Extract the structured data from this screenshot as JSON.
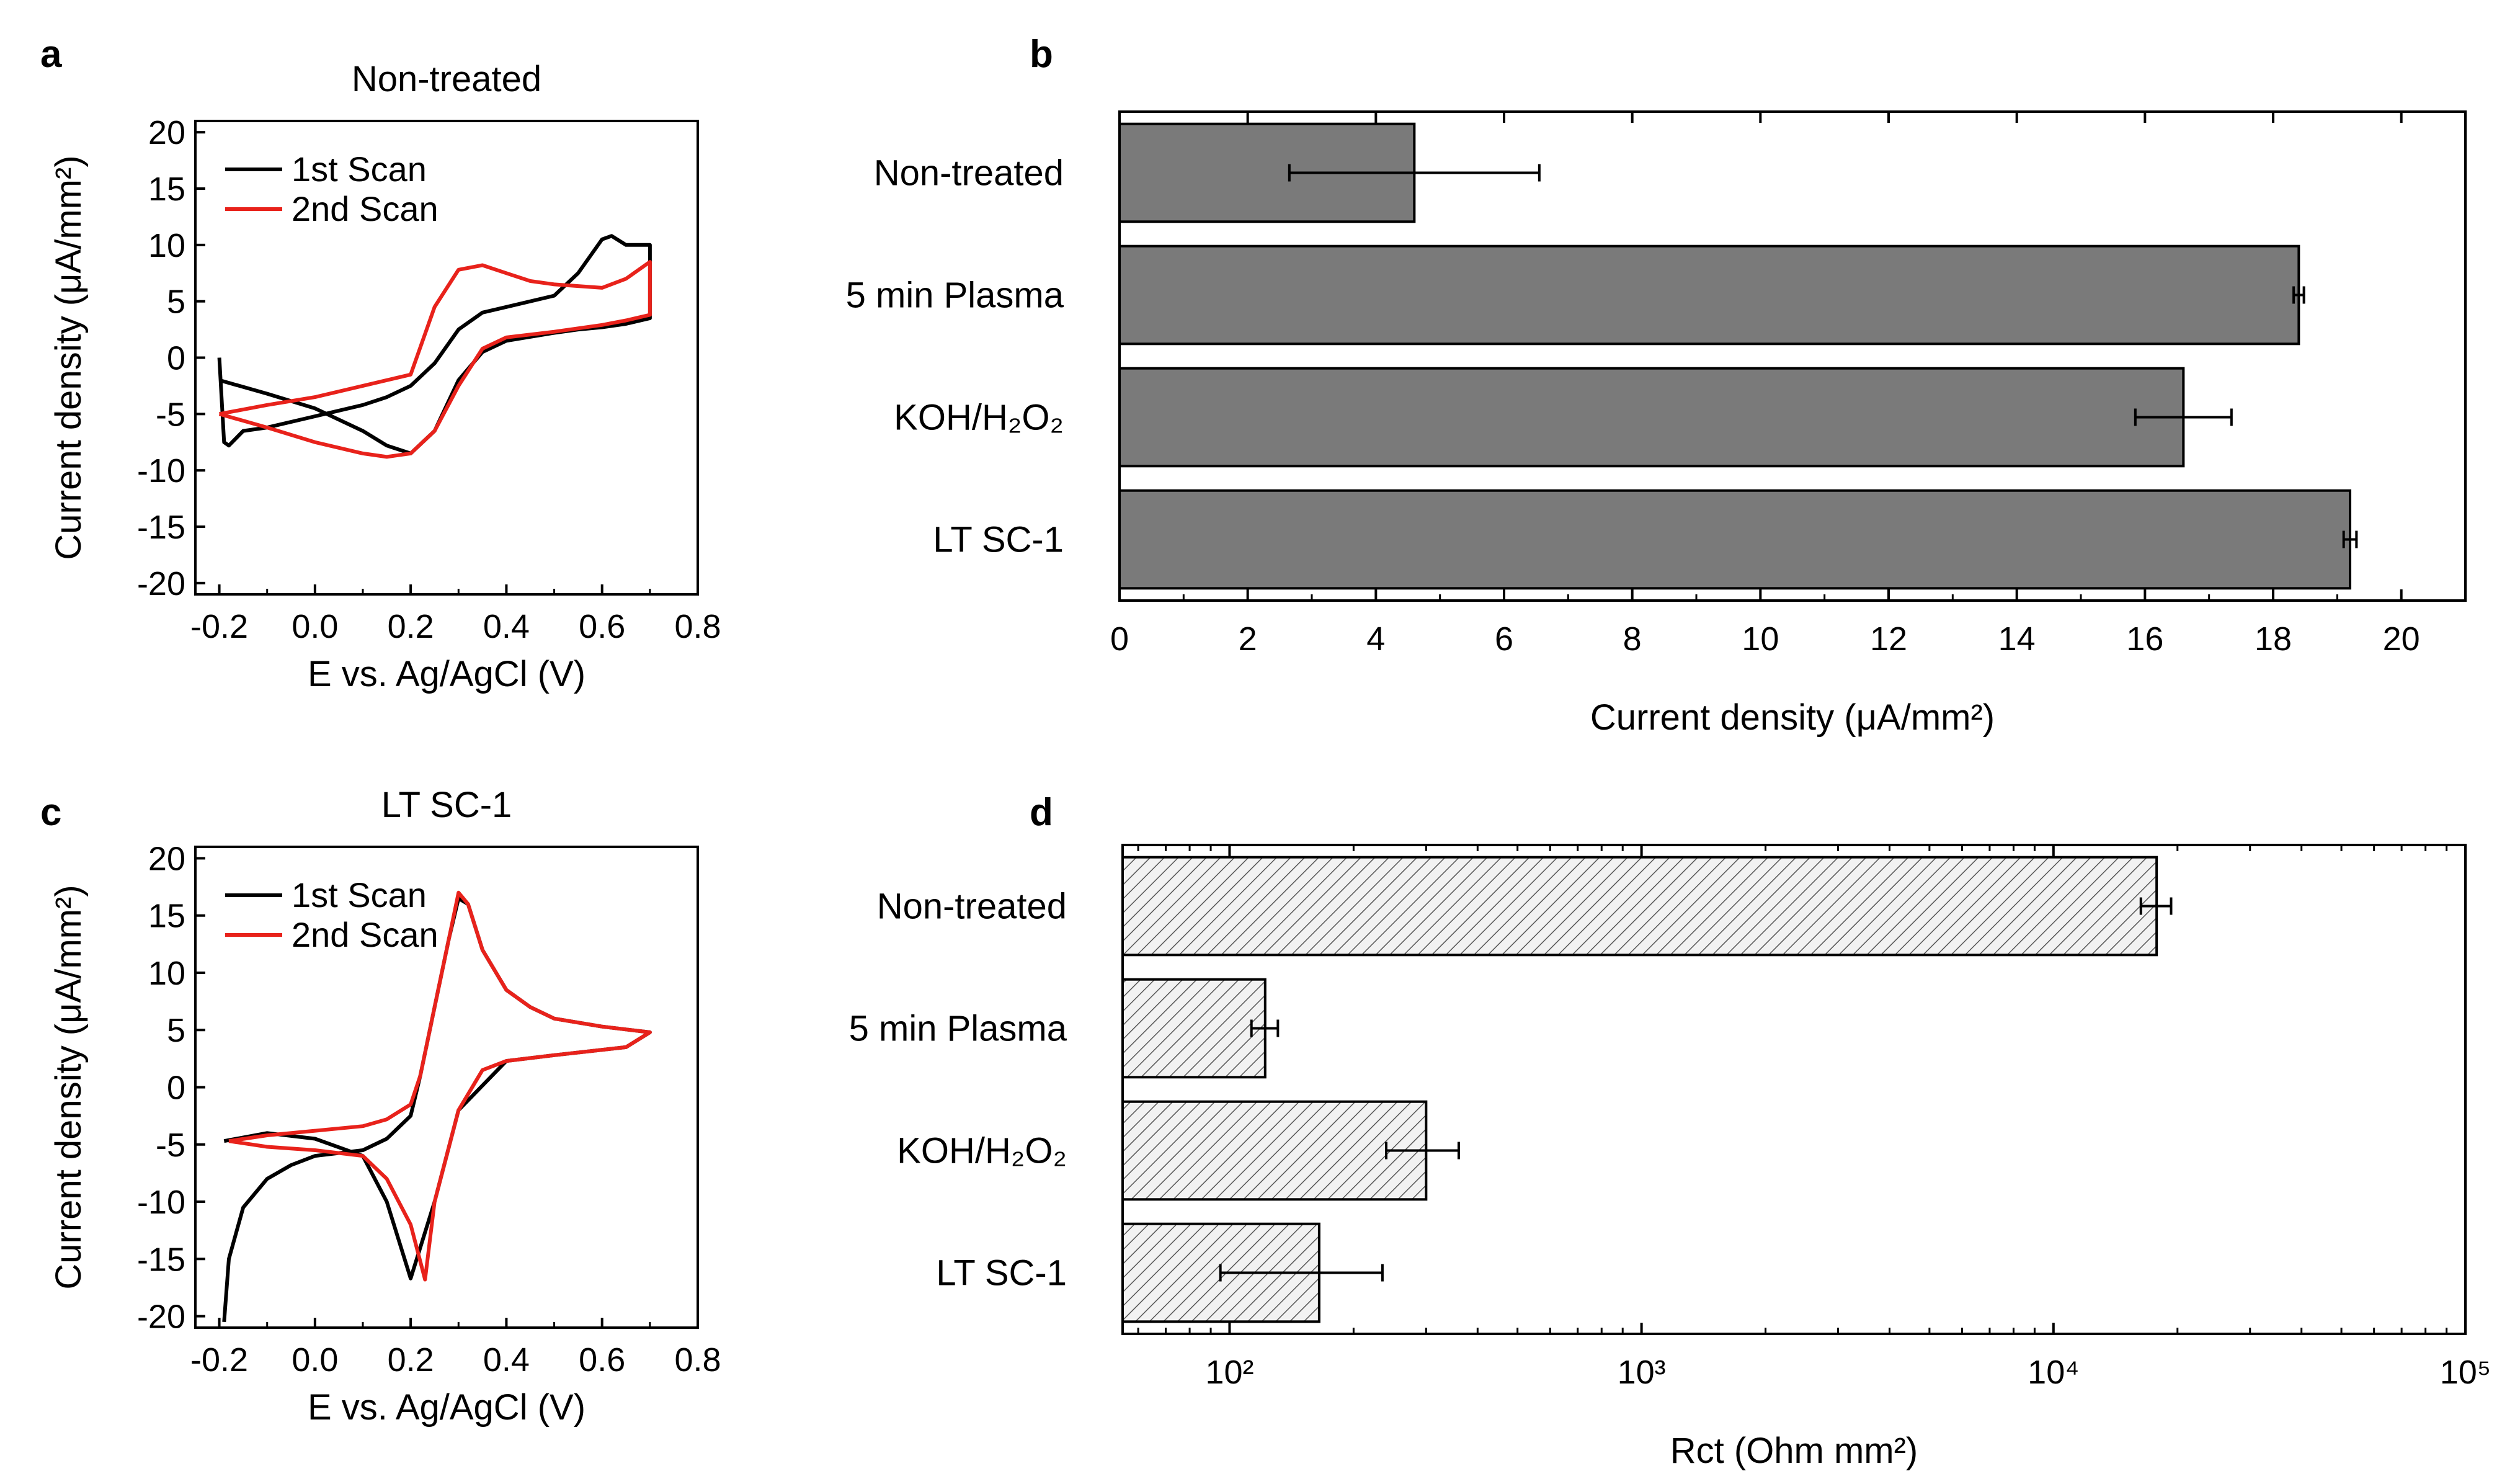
{
  "figure": {
    "panels": [
      "a",
      "b",
      "c",
      "d"
    ]
  },
  "colors": {
    "scan1": "#000000",
    "scan2": "#e8221b",
    "bar_fill": "#7a7a7a",
    "hatch": "#555555",
    "axis": "#000000"
  },
  "chart_data": [
    {
      "id": "a",
      "type": "line",
      "panel_letter": "a",
      "title": "Non-treated",
      "xlabel": "E vs. Ag/AgCl (V)",
      "ylabel": "Current density (μA/mm²)",
      "xlim": [
        -0.25,
        0.8
      ],
      "ylim": [
        -21,
        21
      ],
      "xticks": [
        -0.2,
        0.0,
        0.2,
        0.4,
        0.6,
        0.8
      ],
      "xtick_labels": [
        "-0.2",
        "0.0",
        "0.2",
        "0.4",
        "0.6",
        "0.8"
      ],
      "yticks": [
        -20,
        -15,
        -10,
        -5,
        0,
        5,
        10,
        15,
        20
      ],
      "ytick_labels": [
        "-20",
        "-15",
        "-10",
        "-5",
        "0",
        "5",
        "10",
        "15",
        "20"
      ],
      "legend": [
        "1st Scan",
        "2nd Scan"
      ],
      "series": [
        {
          "name": "1st Scan",
          "color": "#000000",
          "x": [
            -0.2,
            -0.19,
            -0.18,
            -0.15,
            -0.1,
            0.0,
            0.1,
            0.15,
            0.2,
            0.25,
            0.3,
            0.35,
            0.4,
            0.5,
            0.55,
            0.6,
            0.62,
            0.65,
            0.7,
            0.7,
            0.65,
            0.6,
            0.55,
            0.5,
            0.4,
            0.35,
            0.3,
            0.25,
            0.2,
            0.15,
            0.1,
            0.0,
            -0.1,
            -0.2
          ],
          "y": [
            0,
            -7.5,
            -7.8,
            -6.5,
            -6.2,
            -5.2,
            -4.2,
            -3.5,
            -2.5,
            -0.5,
            2.5,
            4,
            4.5,
            5.5,
            7.5,
            10.5,
            10.8,
            10,
            10,
            3.5,
            3,
            2.7,
            2.5,
            2.2,
            1.5,
            0.5,
            -2,
            -6.5,
            -8.5,
            -7.8,
            -6.5,
            -4.5,
            -3.2,
            -2
          ]
        },
        {
          "name": "2nd Scan",
          "color": "#e8221b",
          "x": [
            -0.2,
            -0.1,
            0.0,
            0.1,
            0.15,
            0.2,
            0.25,
            0.3,
            0.35,
            0.4,
            0.45,
            0.5,
            0.6,
            0.65,
            0.7,
            0.7,
            0.65,
            0.6,
            0.5,
            0.4,
            0.35,
            0.3,
            0.25,
            0.2,
            0.15,
            0.1,
            0.0,
            -0.1,
            -0.2
          ],
          "y": [
            -5,
            -4.2,
            -3.5,
            -2.5,
            -2,
            -1.5,
            4.5,
            7.8,
            8.2,
            7.5,
            6.8,
            6.5,
            6.2,
            7,
            8.5,
            3.8,
            3.3,
            2.9,
            2.3,
            1.8,
            0.8,
            -2.5,
            -6.5,
            -8.5,
            -8.8,
            -8.5,
            -7.5,
            -6.2,
            -5
          ]
        }
      ]
    },
    {
      "id": "b",
      "type": "bar",
      "orientation": "horizontal",
      "panel_letter": "b",
      "title": "",
      "xlabel": "Current density (μA/mm²)",
      "categories": [
        "Non-treated",
        "5 min Plasma",
        "KOH/H₂O₂",
        "LT SC-1"
      ],
      "values": [
        4.6,
        18.4,
        16.6,
        19.2
      ],
      "errors": [
        1.95,
        0.08,
        0.75,
        0.1
      ],
      "xlim": [
        0,
        21
      ],
      "xticks": [
        0,
        2,
        4,
        6,
        8,
        10,
        12,
        14,
        16,
        18,
        20
      ],
      "xtick_labels": [
        "0",
        "2",
        "4",
        "6",
        "8",
        "10",
        "12",
        "14",
        "16",
        "18",
        "20"
      ]
    },
    {
      "id": "c",
      "type": "line",
      "panel_letter": "c",
      "title": "LT SC-1",
      "xlabel": "E vs. Ag/AgCl (V)",
      "ylabel": "Current density (μA/mm²)",
      "xlim": [
        -0.25,
        0.8
      ],
      "ylim": [
        -21,
        21
      ],
      "xticks": [
        -0.2,
        0.0,
        0.2,
        0.4,
        0.6,
        0.8
      ],
      "xtick_labels": [
        "-0.2",
        "0.0",
        "0.2",
        "0.4",
        "0.6",
        "0.8"
      ],
      "yticks": [
        -20,
        -15,
        -10,
        -5,
        0,
        5,
        10,
        15,
        20
      ],
      "ytick_labels": [
        "-20",
        "-15",
        "-10",
        "-5",
        "0",
        "5",
        "10",
        "15",
        "20"
      ],
      "legend": [
        "1st Scan",
        "2nd Scan"
      ],
      "series": [
        {
          "name": "1st Scan",
          "color": "#000000",
          "x": [
            -0.19,
            -0.18,
            -0.15,
            -0.1,
            -0.05,
            0.0,
            0.1,
            0.15,
            0.2,
            0.22,
            0.25,
            0.28,
            0.3,
            0.32,
            0.35,
            0.4,
            0.45,
            0.5,
            0.6,
            0.7,
            0.65,
            0.5,
            0.4,
            0.3,
            0.25,
            0.2,
            0.15,
            0.1,
            0.0,
            -0.1,
            -0.19
          ],
          "y": [
            -20.5,
            -15,
            -10.5,
            -8,
            -6.8,
            -6,
            -5.5,
            -4.5,
            -2.5,
            1,
            7,
            13,
            16.5,
            16,
            12,
            8.5,
            7,
            6,
            5.3,
            4.8,
            3.5,
            2.8,
            2.3,
            -2,
            -10,
            -16.7,
            -10,
            -6,
            -4.5,
            -4,
            -4.7
          ]
        },
        {
          "name": "2nd Scan",
          "color": "#e8221b",
          "x": [
            -0.18,
            -0.1,
            0.0,
            0.1,
            0.15,
            0.2,
            0.22,
            0.25,
            0.28,
            0.3,
            0.32,
            0.35,
            0.4,
            0.45,
            0.5,
            0.6,
            0.7,
            0.65,
            0.5,
            0.4,
            0.35,
            0.3,
            0.25,
            0.23,
            0.2,
            0.15,
            0.1,
            0.0,
            -0.1,
            -0.18
          ],
          "y": [
            -4.7,
            -4.2,
            -3.8,
            -3.4,
            -2.8,
            -1.5,
            1,
            7,
            13,
            17,
            16,
            12,
            8.5,
            7,
            6,
            5.3,
            4.8,
            3.5,
            2.8,
            2.3,
            1.5,
            -2,
            -10,
            -16.8,
            -12,
            -8,
            -6,
            -5.5,
            -5.2,
            -4.7
          ]
        }
      ]
    },
    {
      "id": "d",
      "type": "bar",
      "orientation": "horizontal",
      "panel_letter": "d",
      "title": "",
      "xlabel": "Rct (Ohm mm²)",
      "xscale": "log",
      "categories": [
        "Non-treated",
        "5 min Plasma",
        "KOH/H₂O₂",
        "LT SC-1"
      ],
      "values": [
        17800,
        122,
        300,
        165
      ],
      "error_low": [
        16300,
        113,
        240,
        95
      ],
      "error_high": [
        19300,
        131,
        360,
        235
      ],
      "xlim": [
        55,
        100000
      ],
      "xticks": [
        100,
        1000,
        10000,
        100000
      ],
      "xtick_labels": [
        "10²",
        "10³",
        "10⁴",
        "10⁵"
      ]
    }
  ]
}
